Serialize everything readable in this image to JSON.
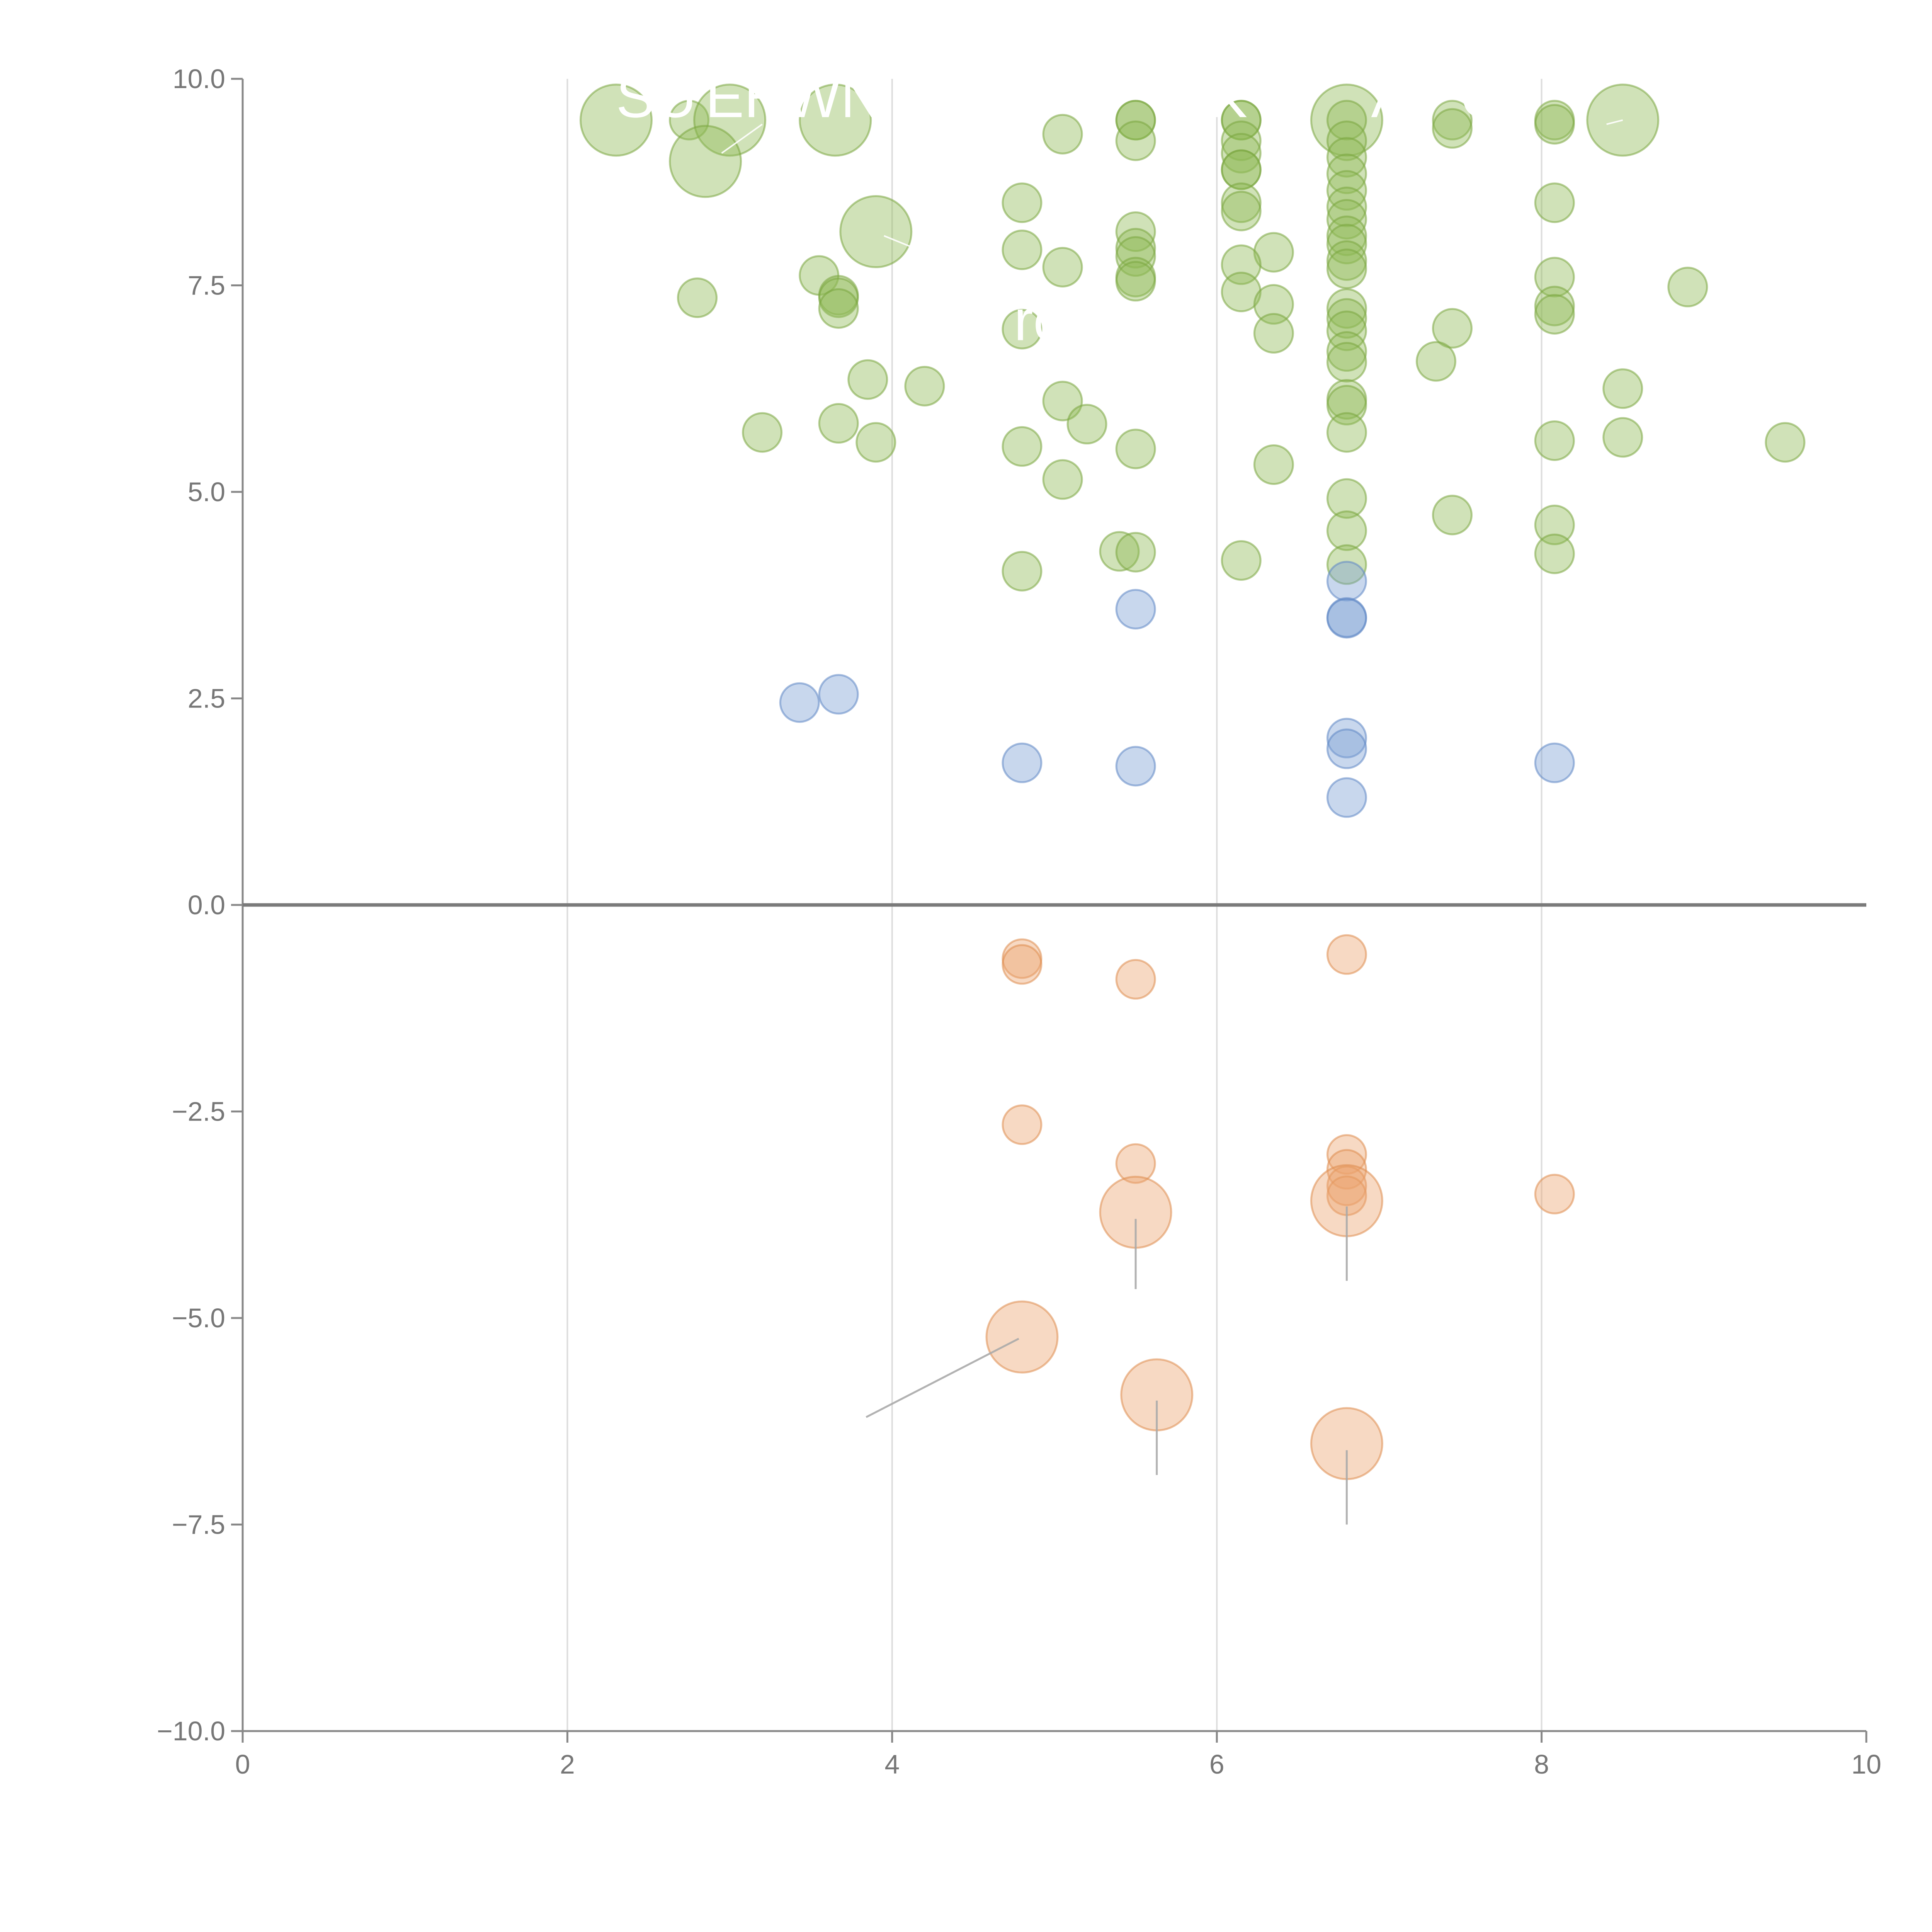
{
  "chart_data": {
    "type": "scatter",
    "title": "",
    "xlabel": "",
    "ylabel": "",
    "xlim": [
      0,
      10
    ],
    "ylim": [
      -10,
      10
    ],
    "grid": "vertical",
    "x_ticks": [
      0,
      2,
      4,
      6,
      8,
      10
    ],
    "x_tick_labels": [
      "0",
      "2",
      "4",
      "6",
      "8",
      "10"
    ],
    "y_ticks": [
      10,
      7.5,
      5,
      2.5,
      0,
      -2.5,
      -5,
      -7.5,
      -10
    ],
    "y_tick_labels": [
      "10.0",
      "7.5",
      "5.0",
      "2.5",
      "0.0",
      "−2.5",
      "−5.0",
      "−7.5",
      "−10.0"
    ],
    "zero_line": 0,
    "series": [
      {
        "name": "green",
        "color": "#8fb955",
        "stroke": "#7aa63f",
        "points": [
          {
            "x": 2.3,
            "y": 9.5,
            "size": "large"
          },
          {
            "x": 2.75,
            "y": 9.5,
            "size": "small"
          },
          {
            "x": 3.0,
            "y": 9.5,
            "size": "large"
          },
          {
            "x": 3.65,
            "y": 9.5,
            "size": "large"
          },
          {
            "x": 2.85,
            "y": 9.0,
            "size": "large"
          },
          {
            "x": 3.9,
            "y": 8.15,
            "size": "large"
          },
          {
            "x": 6.8,
            "y": 9.5,
            "size": "large"
          },
          {
            "x": 8.5,
            "y": 9.5,
            "size": "large"
          },
          {
            "x": 5.5,
            "y": 9.5,
            "size": "small"
          },
          {
            "x": 5.5,
            "y": 9.5,
            "size": "small"
          },
          {
            "x": 6.15,
            "y": 9.5,
            "size": "small"
          },
          {
            "x": 6.15,
            "y": 9.5,
            "size": "small"
          },
          {
            "x": 6.8,
            "y": 9.5,
            "size": "small"
          },
          {
            "x": 7.45,
            "y": 9.5,
            "size": "small"
          },
          {
            "x": 8.08,
            "y": 9.5,
            "size": "small"
          },
          {
            "x": 8.08,
            "y": 9.45,
            "size": "small"
          },
          {
            "x": 5.05,
            "y": 9.33,
            "size": "small"
          },
          {
            "x": 5.5,
            "y": 9.25,
            "size": "small"
          },
          {
            "x": 6.15,
            "y": 9.25,
            "size": "small"
          },
          {
            "x": 6.15,
            "y": 9.1,
            "size": "small"
          },
          {
            "x": 7.45,
            "y": 9.4,
            "size": "small"
          },
          {
            "x": 6.15,
            "y": 8.9,
            "size": "small"
          },
          {
            "x": 6.15,
            "y": 8.9,
            "size": "small"
          },
          {
            "x": 6.8,
            "y": 9.25,
            "size": "small"
          },
          {
            "x": 6.8,
            "y": 9.05,
            "size": "small"
          },
          {
            "x": 6.8,
            "y": 8.85,
            "size": "small"
          },
          {
            "x": 6.8,
            "y": 8.65,
            "size": "small"
          },
          {
            "x": 6.8,
            "y": 8.45,
            "size": "small"
          },
          {
            "x": 6.8,
            "y": 8.3,
            "size": "small"
          },
          {
            "x": 6.8,
            "y": 8.1,
            "size": "small"
          },
          {
            "x": 6.8,
            "y": 8.0,
            "size": "small"
          },
          {
            "x": 6.8,
            "y": 7.8,
            "size": "small"
          },
          {
            "x": 6.8,
            "y": 7.7,
            "size": "small"
          },
          {
            "x": 4.8,
            "y": 8.5,
            "size": "small"
          },
          {
            "x": 6.15,
            "y": 8.5,
            "size": "small"
          },
          {
            "x": 6.15,
            "y": 8.4,
            "size": "small"
          },
          {
            "x": 8.08,
            "y": 8.5,
            "size": "small"
          },
          {
            "x": 5.5,
            "y": 8.15,
            "size": "small"
          },
          {
            "x": 5.5,
            "y": 7.95,
            "size": "small"
          },
          {
            "x": 5.5,
            "y": 7.85,
            "size": "small"
          },
          {
            "x": 4.8,
            "y": 7.93,
            "size": "small"
          },
          {
            "x": 6.35,
            "y": 7.9,
            "size": "small"
          },
          {
            "x": 5.05,
            "y": 7.72,
            "size": "small"
          },
          {
            "x": 6.15,
            "y": 7.75,
            "size": "small"
          },
          {
            "x": 5.5,
            "y": 7.6,
            "size": "small"
          },
          {
            "x": 5.5,
            "y": 7.55,
            "size": "small"
          },
          {
            "x": 3.55,
            "y": 7.62,
            "size": "small"
          },
          {
            "x": 8.08,
            "y": 7.6,
            "size": "small"
          },
          {
            "x": 8.9,
            "y": 7.48,
            "size": "small"
          },
          {
            "x": 2.8,
            "y": 7.35,
            "size": "small"
          },
          {
            "x": 3.67,
            "y": 7.38,
            "size": "small"
          },
          {
            "x": 3.67,
            "y": 7.35,
            "size": "small"
          },
          {
            "x": 3.67,
            "y": 7.22,
            "size": "small"
          },
          {
            "x": 6.15,
            "y": 7.42,
            "size": "small"
          },
          {
            "x": 6.35,
            "y": 7.27,
            "size": "small"
          },
          {
            "x": 6.8,
            "y": 7.22,
            "size": "small"
          },
          {
            "x": 6.8,
            "y": 7.1,
            "size": "small"
          },
          {
            "x": 6.8,
            "y": 6.95,
            "size": "small"
          },
          {
            "x": 8.08,
            "y": 7.25,
            "size": "small"
          },
          {
            "x": 8.08,
            "y": 7.15,
            "size": "small"
          },
          {
            "x": 4.8,
            "y": 6.97,
            "size": "small"
          },
          {
            "x": 7.45,
            "y": 6.98,
            "size": "small"
          },
          {
            "x": 6.35,
            "y": 6.92,
            "size": "small"
          },
          {
            "x": 6.8,
            "y": 6.7,
            "size": "small"
          },
          {
            "x": 6.8,
            "y": 6.57,
            "size": "small"
          },
          {
            "x": 7.35,
            "y": 6.58,
            "size": "small"
          },
          {
            "x": 3.85,
            "y": 6.36,
            "size": "small"
          },
          {
            "x": 4.2,
            "y": 6.28,
            "size": "small"
          },
          {
            "x": 8.5,
            "y": 6.25,
            "size": "small"
          },
          {
            "x": 5.05,
            "y": 6.1,
            "size": "small"
          },
          {
            "x": 6.8,
            "y": 6.12,
            "size": "small"
          },
          {
            "x": 6.8,
            "y": 6.05,
            "size": "small"
          },
          {
            "x": 3.67,
            "y": 5.83,
            "size": "small"
          },
          {
            "x": 5.2,
            "y": 5.82,
            "size": "small"
          },
          {
            "x": 6.8,
            "y": 5.72,
            "size": "small"
          },
          {
            "x": 3.2,
            "y": 5.72,
            "size": "small"
          },
          {
            "x": 3.9,
            "y": 5.6,
            "size": "small"
          },
          {
            "x": 8.08,
            "y": 5.62,
            "size": "small"
          },
          {
            "x": 8.5,
            "y": 5.66,
            "size": "small"
          },
          {
            "x": 9.5,
            "y": 5.6,
            "size": "small"
          },
          {
            "x": 4.8,
            "y": 5.55,
            "size": "small"
          },
          {
            "x": 5.5,
            "y": 5.52,
            "size": "small"
          },
          {
            "x": 6.35,
            "y": 5.33,
            "size": "small"
          },
          {
            "x": 5.05,
            "y": 5.15,
            "size": "small"
          },
          {
            "x": 6.8,
            "y": 4.92,
            "size": "small"
          },
          {
            "x": 7.45,
            "y": 4.72,
            "size": "small"
          },
          {
            "x": 8.08,
            "y": 4.6,
            "size": "small"
          },
          {
            "x": 6.8,
            "y": 4.53,
            "size": "small"
          },
          {
            "x": 5.4,
            "y": 4.28,
            "size": "small"
          },
          {
            "x": 5.5,
            "y": 4.27,
            "size": "small"
          },
          {
            "x": 8.08,
            "y": 4.25,
            "size": "small"
          },
          {
            "x": 6.15,
            "y": 4.17,
            "size": "small"
          },
          {
            "x": 6.8,
            "y": 4.12,
            "size": "small"
          },
          {
            "x": 4.8,
            "y": 4.04,
            "size": "small"
          }
        ]
      },
      {
        "name": "blue",
        "color": "#7c9fd4",
        "stroke": "#5f86c4",
        "points": [
          {
            "x": 6.8,
            "y": 3.92,
            "size": "small"
          },
          {
            "x": 5.5,
            "y": 3.58,
            "size": "small"
          },
          {
            "x": 6.8,
            "y": 3.48,
            "size": "small"
          },
          {
            "x": 6.8,
            "y": 3.47,
            "size": "small"
          },
          {
            "x": 3.67,
            "y": 2.55,
            "size": "small"
          },
          {
            "x": 3.43,
            "y": 2.45,
            "size": "small"
          },
          {
            "x": 6.8,
            "y": 2.02,
            "size": "small"
          },
          {
            "x": 6.8,
            "y": 1.89,
            "size": "small"
          },
          {
            "x": 4.8,
            "y": 1.72,
            "size": "small"
          },
          {
            "x": 8.08,
            "y": 1.72,
            "size": "small"
          },
          {
            "x": 5.5,
            "y": 1.68,
            "size": "small"
          },
          {
            "x": 6.8,
            "y": 1.3,
            "size": "small"
          }
        ]
      },
      {
        "name": "orange",
        "color": "#eba571",
        "stroke": "#de8c4f",
        "points": [
          {
            "x": 4.8,
            "y": -0.65,
            "size": "small"
          },
          {
            "x": 4.8,
            "y": -0.72,
            "size": "small"
          },
          {
            "x": 6.8,
            "y": -0.6,
            "size": "small"
          },
          {
            "x": 5.5,
            "y": -0.9,
            "size": "small"
          },
          {
            "x": 4.8,
            "y": -2.66,
            "size": "small"
          },
          {
            "x": 5.5,
            "y": -3.13,
            "size": "small"
          },
          {
            "x": 6.8,
            "y": -3.02,
            "size": "small"
          },
          {
            "x": 6.8,
            "y": -3.2,
            "size": "small"
          },
          {
            "x": 6.8,
            "y": -3.4,
            "size": "small"
          },
          {
            "x": 6.8,
            "y": -3.52,
            "size": "small"
          },
          {
            "x": 8.08,
            "y": -3.5,
            "size": "small"
          },
          {
            "x": 5.5,
            "y": -3.72,
            "size": "large"
          },
          {
            "x": 6.8,
            "y": -3.58,
            "size": "large"
          },
          {
            "x": 4.8,
            "y": -5.23,
            "size": "large"
          },
          {
            "x": 5.63,
            "y": -5.93,
            "size": "large"
          },
          {
            "x": 6.8,
            "y": -6.52,
            "size": "large"
          }
        ]
      }
    ],
    "annotations": [
      {
        "text": "SU",
        "x": 2.3,
        "y": 9.7,
        "line": false
      },
      {
        "text": "EHWN",
        "x": 2.85,
        "y": 9.7,
        "line": false
      },
      {
        "text": "—",
        "x": 2.95,
        "y": 9.1,
        "line": true,
        "x2": 3.2,
        "y2": 9.45
      },
      {
        "text": "K",
        "x": 5.95,
        "y": 9.7,
        "line": false
      },
      {
        "text": "—",
        "x": 3.95,
        "y": 8.1,
        "line": true,
        "x2": 4.2,
        "y2": 7.9
      },
      {
        "text": "A",
        "x": 6.95,
        "y": 9.7,
        "line": false
      },
      {
        "text": "O",
        "x": 7.5,
        "y": 9.7,
        "line": false
      },
      {
        "text": "—",
        "x": 8.5,
        "y": 9.5,
        "line": true,
        "x2": 8.4,
        "y2": 9.45
      },
      {
        "text": "rc",
        "x": 4.75,
        "y": 7.0,
        "line": false
      },
      {
        "text": "",
        "x": 5.5,
        "y": -3.8,
        "line": true,
        "x2": 5.5,
        "y2": -4.65
      },
      {
        "text": "",
        "x": 6.8,
        "y": -3.65,
        "line": true,
        "x2": 6.8,
        "y2": -4.55
      },
      {
        "text": "",
        "x": 4.78,
        "y": -5.25,
        "line": true,
        "x2": 3.84,
        "y2": -6.2
      },
      {
        "text": "",
        "x": 5.63,
        "y": -6.0,
        "line": true,
        "x2": 5.63,
        "y2": -6.9
      },
      {
        "text": "",
        "x": 6.8,
        "y": -6.6,
        "line": true,
        "x2": 6.8,
        "y2": -7.5
      }
    ]
  }
}
